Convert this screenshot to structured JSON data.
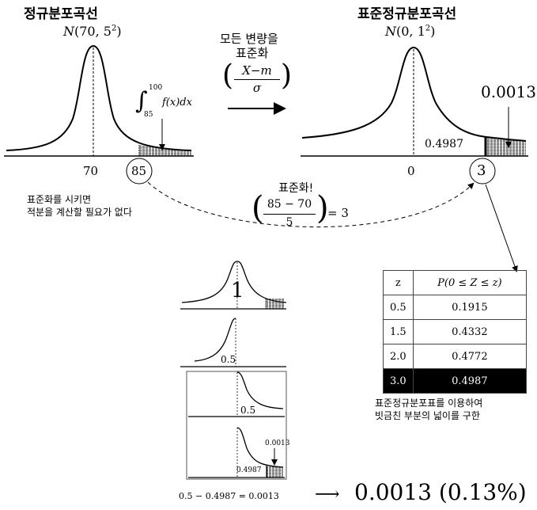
{
  "left": {
    "title": "정규분포곡선",
    "dist_N": "N",
    "dist_params": "(70, 5",
    "dist_exp": "2",
    "dist_close": ")",
    "integral_lower": "85",
    "integral_upper": "100",
    "integral_body": "f(x)dx",
    "tick_mean": "70",
    "tick_value": "85",
    "note_line1": "표준화를 시키면",
    "note_line2": "적분을 계산할 필요가 없다"
  },
  "transform": {
    "line1": "모든 변량을",
    "line2": "표준화",
    "numerator": "X−m",
    "denominator": "σ"
  },
  "right": {
    "title": "표준정규분포곡선",
    "dist_N": "N",
    "dist_params": "(0, 1",
    "dist_exp": "2",
    "dist_close": ")",
    "tail_value": "0.0013",
    "area_value": "0.4987",
    "tick_mean": "0",
    "tick_value": "3"
  },
  "standardize": {
    "label": "표준화!",
    "numerator": "85 − 70",
    "denominator": "5",
    "result": "= 3"
  },
  "table": {
    "headers": [
      "z",
      "P(0 ≤ Z ≤ z)"
    ],
    "rows": [
      {
        "z": "0.5",
        "p": "0.1915"
      },
      {
        "z": "1.5",
        "p": "0.4332"
      },
      {
        "z": "2.0",
        "p": "0.4772"
      },
      {
        "z": "3.0",
        "p": "0.4987"
      }
    ],
    "highlight_row": 3,
    "caption_line1": "표준정규분포표를 이용하여",
    "caption_line2": "빗금친 부분의 넓이를 구한",
    "highlight_color": "#000000"
  },
  "mini": {
    "total_area": "1",
    "half": "0.5",
    "half_right": "0.5",
    "tail": "0.0013",
    "area": "0.4987"
  },
  "bottom": {
    "equation": "0.5 − 0.4987 = 0.0013",
    "arrow": "⟶",
    "result": "0.0013",
    "result_paren": "(0.13%)"
  }
}
